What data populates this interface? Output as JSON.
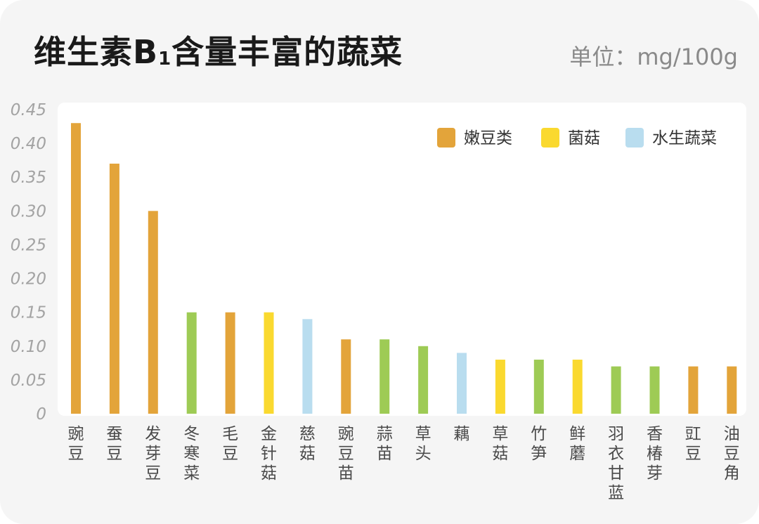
{
  "header": {
    "title_main": "维生素B",
    "title_sub": "1",
    "title_rest": "含量丰富的蔬菜",
    "unit": "单位：mg/100g"
  },
  "chart_data": {
    "type": "bar",
    "title": "维生素B1含量丰富的蔬菜",
    "unit": "单位：mg/100g",
    "ylim": [
      0,
      0.45
    ],
    "yticks": [
      "0",
      "0.05",
      "0.10",
      "0.15",
      "0.20",
      "0.25",
      "0.30",
      "0.35",
      "0.40",
      "0.45"
    ],
    "grid": false,
    "legend_position": "top-right",
    "legend": [
      {
        "name": "嫩豆类",
        "color": "#E3A43A"
      },
      {
        "name": "菌菇",
        "color": "#FAD92F"
      },
      {
        "name": "水生蔬菜",
        "color": "#B9DDEF"
      }
    ],
    "unlisted_group_color": "#9ECB55",
    "categories": [
      "豌豆",
      "蚕豆",
      "发芽豆",
      "冬寒菜",
      "毛豆",
      "金针菇",
      "慈菇",
      "豌豆苗",
      "蒜苗",
      "草头",
      "藕",
      "草菇",
      "竹笋",
      "鲜蘑",
      "羽衣甘蓝",
      "香椿芽",
      "豇豆",
      "油豆角"
    ],
    "values": [
      0.43,
      0.37,
      0.3,
      0.15,
      0.15,
      0.15,
      0.14,
      0.11,
      0.11,
      0.1,
      0.09,
      0.08,
      0.08,
      0.08,
      0.07,
      0.07,
      0.07,
      0.07
    ],
    "colors": [
      "#E3A43A",
      "#E3A43A",
      "#E3A43A",
      "#9ECB55",
      "#E3A43A",
      "#FAD92F",
      "#B9DDEF",
      "#E3A43A",
      "#9ECB55",
      "#9ECB55",
      "#B9DDEF",
      "#FAD92F",
      "#9ECB55",
      "#FAD92F",
      "#9ECB55",
      "#9ECB55",
      "#E3A43A",
      "#E3A43A"
    ]
  }
}
